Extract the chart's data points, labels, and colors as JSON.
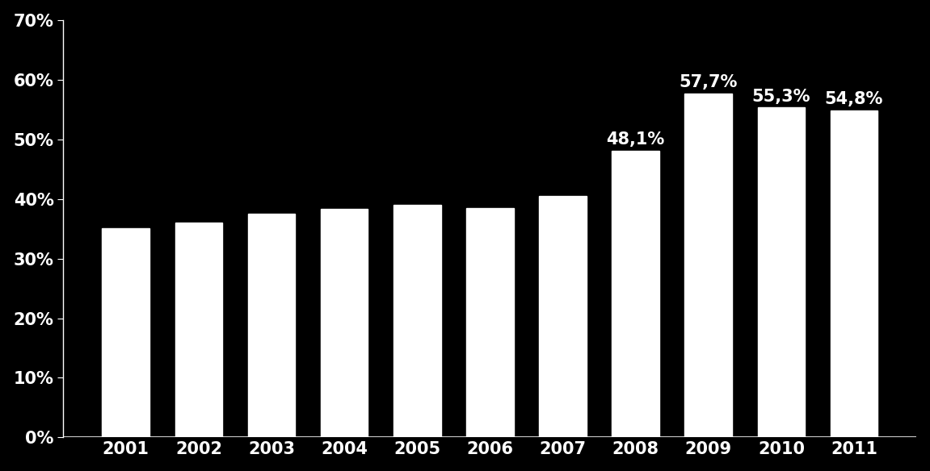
{
  "years": [
    2001,
    2002,
    2003,
    2004,
    2005,
    2006,
    2007,
    2008,
    2009,
    2010,
    2011
  ],
  "values": [
    0.351,
    0.36,
    0.375,
    0.383,
    0.39,
    0.385,
    0.405,
    0.481,
    0.577,
    0.553,
    0.548
  ],
  "labels": [
    "",
    "",
    "",
    "",
    "",
    "",
    "",
    "48,1%",
    "57,7%",
    "55,3%",
    "54,8%"
  ],
  "bar_color": "#ffffff",
  "background_color": "#000000",
  "text_color": "#ffffff",
  "ylim": [
    0,
    0.7
  ],
  "yticks": [
    0.0,
    0.1,
    0.2,
    0.3,
    0.4,
    0.5,
    0.6,
    0.7
  ],
  "ytick_labels": [
    "0%",
    "10%",
    "20%",
    "30%",
    "40%",
    "50%",
    "60%",
    "70%"
  ],
  "label_fontsize": 15,
  "tick_fontsize": 15,
  "bar_width": 0.65
}
